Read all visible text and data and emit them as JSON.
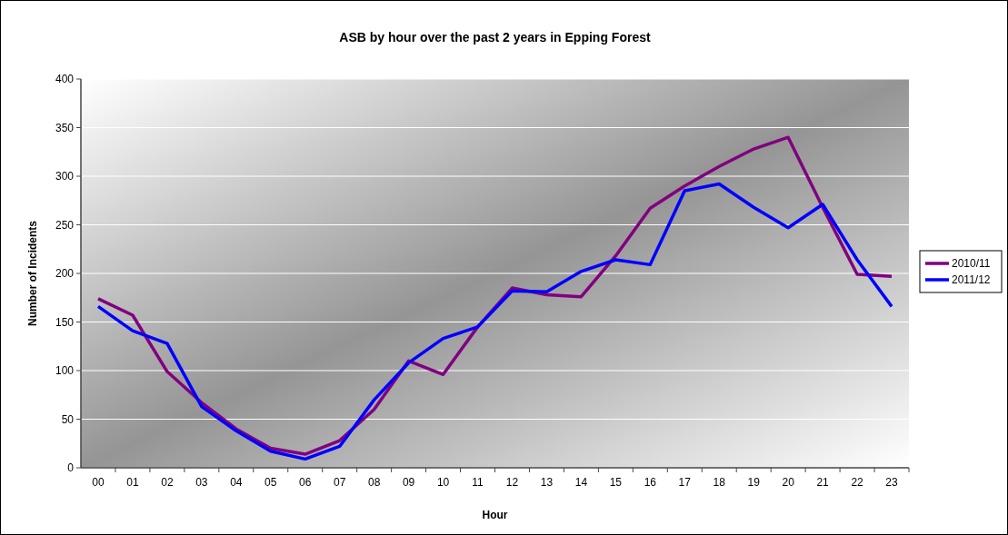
{
  "chart_data": {
    "type": "line",
    "title": "ASB by hour over the past 2 years in Epping Forest",
    "xlabel": "Hour",
    "ylabel": "Number of Incidents",
    "categories": [
      "00",
      "01",
      "02",
      "03",
      "04",
      "05",
      "06",
      "07",
      "08",
      "09",
      "10",
      "11",
      "12",
      "13",
      "14",
      "15",
      "16",
      "17",
      "18",
      "19",
      "20",
      "21",
      "22",
      "23"
    ],
    "series": [
      {
        "name": "2010/11",
        "color": "#800080",
        "values": [
          174,
          157,
          99,
          67,
          40,
          20,
          14,
          28,
          60,
          110,
          96,
          145,
          185,
          178,
          176,
          218,
          267,
          290,
          310,
          328,
          340,
          268,
          199,
          197
        ]
      },
      {
        "name": "2011/12",
        "color": "#0000ff",
        "values": [
          166,
          141,
          128,
          63,
          38,
          17,
          9,
          22,
          70,
          108,
          133,
          145,
          182,
          181,
          202,
          214,
          209,
          285,
          292,
          268,
          247,
          271,
          214,
          166
        ]
      }
    ],
    "ylim": [
      0,
      400
    ],
    "yticks": [
      0,
      50,
      100,
      150,
      200,
      250,
      300,
      350,
      400
    ],
    "grid": "y",
    "legend": "right",
    "marker": "none",
    "line_style": "solid"
  }
}
